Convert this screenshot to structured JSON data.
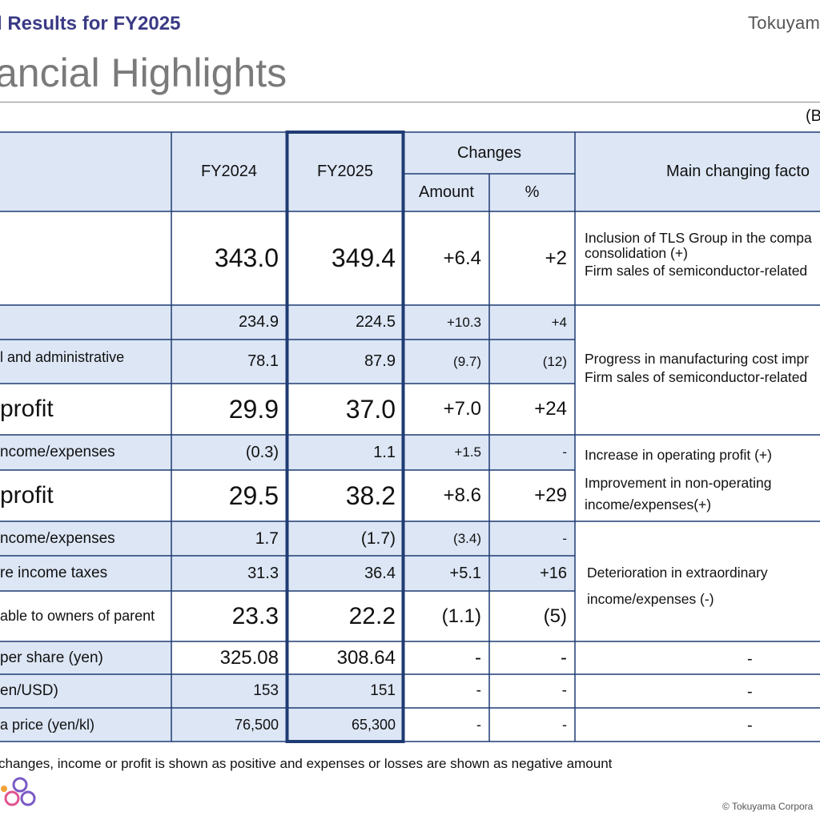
{
  "header": {
    "subtitle": "l Results for FY2025",
    "logo": "Tokuyam",
    "title": "ancial Highlights",
    "unit": "(B"
  },
  "table": {
    "headers": {
      "fy2024": "FY2024",
      "fy2025": "FY2025",
      "changes": "Changes",
      "amount": "Amount",
      "pct": "%",
      "factors": "Main changing facto"
    },
    "rows": [
      {
        "label": "",
        "fy2024": "343.0",
        "fy2025": "349.4",
        "amount": "+6.4",
        "pct": "+2"
      },
      {
        "label": "",
        "fy2024": "234.9",
        "fy2025": "224.5",
        "amount": "+10.3",
        "pct": "+4"
      },
      {
        "label": "l and administrative",
        "fy2024": "78.1",
        "fy2025": "87.9",
        "amount": "(9.7)",
        "pct": "(12)"
      },
      {
        "label": "profit",
        "fy2024": "29.9",
        "fy2025": "37.0",
        "amount": "+7.0",
        "pct": "+24"
      },
      {
        "label": "ncome/expenses",
        "fy2024": "(0.3)",
        "fy2025": "1.1",
        "amount": "+1.5",
        "pct": "-"
      },
      {
        "label": "profit",
        "fy2024": "29.5",
        "fy2025": "38.2",
        "amount": "+8.6",
        "pct": "+29"
      },
      {
        "label": "ncome/expenses",
        "fy2024": "1.7",
        "fy2025": "(1.7)",
        "amount": "(3.4)",
        "pct": "-"
      },
      {
        "label": "re income taxes",
        "fy2024": "31.3",
        "fy2025": "36.4",
        "amount": "+5.1",
        "pct": "+16"
      },
      {
        "label": "able to owners of parent",
        "fy2024": "23.3",
        "fy2025": "22.2",
        "amount": "(1.1)",
        "pct": "(5)"
      },
      {
        "label": "per share (yen)",
        "fy2024": "325.08",
        "fy2025": "308.64",
        "amount": "-",
        "pct": "-"
      },
      {
        "label": "en/USD)",
        "fy2024": "153",
        "fy2025": "151",
        "amount": "-",
        "pct": "-"
      },
      {
        "label": "a price (yen/kl)",
        "fy2024": "76,500",
        "fy2025": "65,300",
        "amount": "-",
        "pct": "-"
      }
    ],
    "factors": {
      "g1": [
        "Inclusion of TLS Group in the compa",
        "consolidation (+)",
        "Firm sales of semiconductor-related"
      ],
      "g2": [
        "Progress in manufacturing cost impr",
        "Firm sales of semiconductor-related"
      ],
      "g3a": "Increase in operating profit (+)",
      "g3b": [
        "Improvement in non-operating",
        "income/expenses(+)"
      ],
      "g4": [
        "Deterioration in extraordinary",
        "income/expenses (-)"
      ],
      "dash1": "-",
      "dash2": "-",
      "dash3": "-"
    }
  },
  "footer": {
    "note": "changes, income or profit is shown as positive and expenses or losses are shown as negative amount",
    "copyright": "© Tokuyama Corpora"
  },
  "colors": {
    "header_title": "#3a3a86",
    "table_border": "#1f3b73",
    "shade": "#dce6f5"
  }
}
